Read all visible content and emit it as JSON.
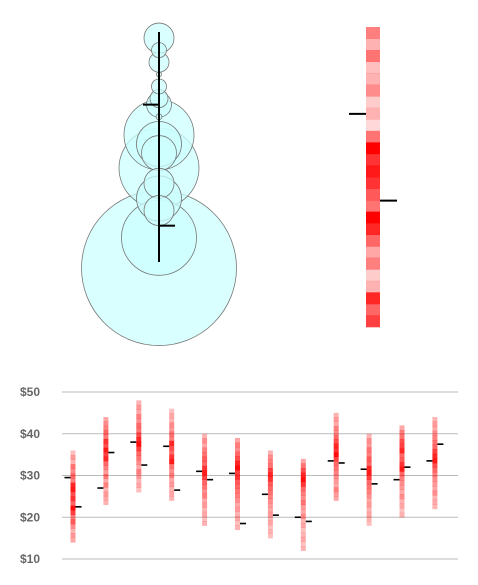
{
  "colors": {
    "bubble_fill": "#ccffff",
    "bubble_inner": "#b3f7f7",
    "bubble_stroke": "#777777",
    "heat": "#ff0000",
    "marker": "#000000",
    "grid": "#bbbbbb",
    "tick_text": "#666666"
  },
  "chart_data": [
    {
      "type": "bubble",
      "description": "Vertical distribution of circles (bubble strip) with a range line and open/close ticks",
      "x": 0,
      "range": [
        10,
        48
      ],
      "open": 36,
      "close": 16,
      "bubbles": [
        {
          "y": 47,
          "r": 3.0
        },
        {
          "y": 45,
          "r": 1.5
        },
        {
          "y": 43,
          "r": 2.0
        },
        {
          "y": 41,
          "r": 0.5
        },
        {
          "y": 39,
          "r": 1.5
        },
        {
          "y": 37,
          "r": 1.8
        },
        {
          "y": 36,
          "r": 2.5
        },
        {
          "y": 34,
          "r": 0.6
        },
        {
          "y": 31,
          "r": 7.0
        },
        {
          "y": 29.5,
          "r": 4.5
        },
        {
          "y": 28,
          "r": 3.5
        },
        {
          "y": 25.5,
          "r": 8.0
        },
        {
          "y": 23,
          "r": 3.0
        },
        {
          "y": 20.5,
          "r": 4.5
        },
        {
          "y": 18.5,
          "r": 3.0
        },
        {
          "y": 14,
          "r": 7.5
        },
        {
          "y": 9,
          "r": 15.5
        }
      ]
    },
    {
      "type": "heatmap",
      "description": "Single vertical heat strip with open/close ticks",
      "range": [
        10,
        48
      ],
      "open": 37,
      "close": 26,
      "cells": [
        0.5,
        0.3,
        0.55,
        0.25,
        0.3,
        0.45,
        0.2,
        0.3,
        0.15,
        0.55,
        1.0,
        0.8,
        0.9,
        0.8,
        0.65,
        0.55,
        1.0,
        0.85,
        0.6,
        0.35,
        0.5,
        0.2,
        0.3,
        0.85,
        0.6,
        0.75
      ]
    },
    {
      "type": "heatmap",
      "description": "Twelve vertical heat strips (one per period) with open and close ticks",
      "y_ticks": [
        {
          "value": 50,
          "label": "$50"
        },
        {
          "value": 40,
          "label": "$40"
        },
        {
          "value": 30,
          "label": "$30"
        },
        {
          "value": 20,
          "label": "$20"
        },
        {
          "value": 10,
          "label": "$10"
        }
      ],
      "ylim": [
        10,
        50
      ],
      "grid": true,
      "series": [
        {
          "low": 14,
          "high": 36,
          "open": 29.5,
          "close": 22.5,
          "cells": [
            0.25,
            0.4,
            0.3,
            0.55,
            0.45,
            0.6,
            0.5,
            0.85,
            0.9,
            0.7,
            0.8,
            0.6,
            0.95,
            0.75,
            0.5,
            0.65,
            0.45,
            0.3,
            0.4,
            0.35
          ]
        },
        {
          "low": 23,
          "high": 44,
          "open": 27,
          "close": 35.5,
          "cells": [
            0.35,
            0.45,
            0.5,
            0.6,
            0.55,
            0.8,
            0.7,
            0.9,
            0.75,
            0.85,
            0.6,
            0.5,
            0.4,
            0.55,
            0.35,
            0.5,
            0.3,
            0.4,
            0.35,
            0.3
          ]
        },
        {
          "low": 26,
          "high": 48,
          "open": 38,
          "close": 32.5,
          "cells": [
            0.3,
            0.4,
            0.35,
            0.5,
            0.45,
            0.6,
            0.55,
            0.7,
            0.85,
            0.95,
            0.75,
            0.6,
            0.55,
            0.45,
            0.35,
            0.5,
            0.4,
            0.3,
            0.35,
            0.25
          ]
        },
        {
          "low": 24,
          "high": 46,
          "open": 37,
          "close": 26.5,
          "cells": [
            0.25,
            0.35,
            0.3,
            0.45,
            0.4,
            0.55,
            0.5,
            0.85,
            0.7,
            0.6,
            0.8,
            0.9,
            0.55,
            0.45,
            0.5,
            0.35,
            0.4,
            0.3,
            0.35,
            0.3
          ]
        },
        {
          "low": 18,
          "high": 40,
          "open": 31,
          "close": 29,
          "cells": [
            0.3,
            0.45,
            0.35,
            0.5,
            0.55,
            0.65,
            0.6,
            0.8,
            0.9,
            0.75,
            0.6,
            0.55,
            0.45,
            0.5,
            0.35,
            0.4,
            0.3,
            0.35,
            0.25,
            0.3
          ]
        },
        {
          "low": 17,
          "high": 39,
          "open": 30.5,
          "close": 18.5,
          "cells": [
            0.35,
            0.5,
            0.45,
            0.6,
            0.7,
            0.85,
            0.95,
            0.75,
            0.8,
            0.65,
            0.6,
            0.55,
            0.5,
            0.45,
            0.35,
            0.4,
            0.3,
            0.35,
            0.25,
            0.3
          ]
        },
        {
          "low": 15,
          "high": 36,
          "open": 25.5,
          "close": 20.5,
          "cells": [
            0.3,
            0.45,
            0.5,
            0.55,
            0.75,
            0.85,
            0.8,
            0.65,
            0.6,
            0.55,
            0.5,
            0.45,
            0.4,
            0.35,
            0.4,
            0.3,
            0.35,
            0.25,
            0.3,
            0.25
          ]
        },
        {
          "low": 12,
          "high": 34,
          "open": 20,
          "close": 19,
          "cells": [
            0.35,
            0.55,
            0.7,
            0.85,
            0.95,
            0.8,
            0.6,
            0.5,
            0.45,
            0.55,
            0.4,
            0.35,
            0.45,
            0.3,
            0.35,
            0.25,
            0.3,
            0.35,
            0.25,
            0.3
          ]
        },
        {
          "low": 24,
          "high": 45,
          "open": 33.5,
          "close": 33,
          "cells": [
            0.3,
            0.4,
            0.35,
            0.5,
            0.45,
            0.6,
            0.7,
            0.85,
            0.8,
            0.95,
            0.75,
            0.6,
            0.55,
            0.5,
            0.45,
            0.4,
            0.35,
            0.5,
            0.4,
            0.35
          ]
        },
        {
          "low": 18,
          "high": 40,
          "open": 31.5,
          "close": 28,
          "cells": [
            0.3,
            0.45,
            0.4,
            0.55,
            0.5,
            0.65,
            0.6,
            0.85,
            0.9,
            0.75,
            0.6,
            0.55,
            0.5,
            0.45,
            0.35,
            0.4,
            0.3,
            0.35,
            0.3,
            0.25
          ]
        },
        {
          "low": 20,
          "high": 42,
          "open": 29,
          "close": 32,
          "cells": [
            0.35,
            0.5,
            0.55,
            0.7,
            0.75,
            0.85,
            0.6,
            0.65,
            0.8,
            0.9,
            0.6,
            0.5,
            0.45,
            0.4,
            0.35,
            0.45,
            0.3,
            0.35,
            0.25,
            0.3
          ]
        },
        {
          "low": 22,
          "high": 44,
          "open": 33.5,
          "close": 37.5,
          "cells": [
            0.3,
            0.4,
            0.35,
            0.45,
            0.5,
            0.55,
            0.6,
            0.75,
            0.85,
            0.9,
            0.7,
            0.6,
            0.5,
            0.45,
            0.4,
            0.35,
            0.45,
            0.3,
            0.35,
            0.3
          ]
        }
      ]
    }
  ]
}
